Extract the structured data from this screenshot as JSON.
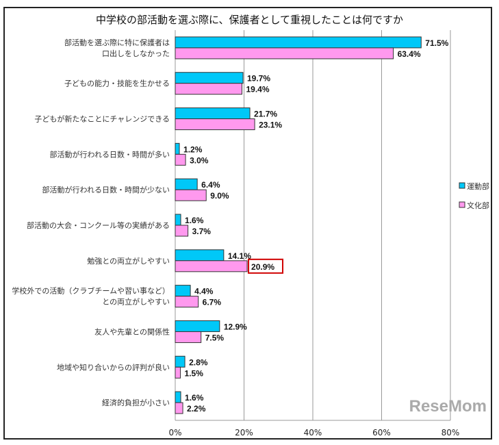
{
  "chart_data": {
    "type": "bar",
    "orientation": "horizontal",
    "title": "中学校の部活動を選ぶ際に、保護者として重視したことは何ですか",
    "categories": [
      [
        "部活動を選ぶ際に特に保護者は",
        "口出しをしなかった"
      ],
      [
        "子どもの能力・技能を生かせる"
      ],
      [
        "子どもが新たなことにチャレンジできる"
      ],
      [
        "部活動が行われる日数・時間が多い"
      ],
      [
        "部活動が行われる日数・時間が少ない"
      ],
      [
        "部活動の大会・コンクール等の実績がある"
      ],
      [
        "勉強との両立がしやすい"
      ],
      [
        "学校外での活動（クラブチームや習い事など）",
        "との両立がしやすい"
      ],
      [
        "友人や先輩との関係性"
      ],
      [
        "地域や知り合いからの評判が良い"
      ],
      [
        "経済的負担が小さい"
      ]
    ],
    "series": [
      {
        "name": "運動部",
        "color": "#00c8f8",
        "values": [
          71.5,
          19.7,
          21.7,
          1.2,
          6.4,
          1.6,
          14.1,
          4.4,
          12.9,
          2.8,
          1.6
        ]
      },
      {
        "name": "文化部",
        "color": "#ff99ee",
        "values": [
          63.4,
          19.4,
          23.1,
          3.0,
          9.0,
          3.7,
          20.9,
          6.7,
          7.5,
          1.5,
          2.2
        ]
      }
    ],
    "xlim": [
      0,
      80
    ],
    "xticks": [
      "0%",
      "20%",
      "40%",
      "60%",
      "80%"
    ],
    "legend": "right",
    "highlight": {
      "series": 1,
      "index": 6,
      "color": "#d00000"
    }
  },
  "watermark": "ReseMom"
}
